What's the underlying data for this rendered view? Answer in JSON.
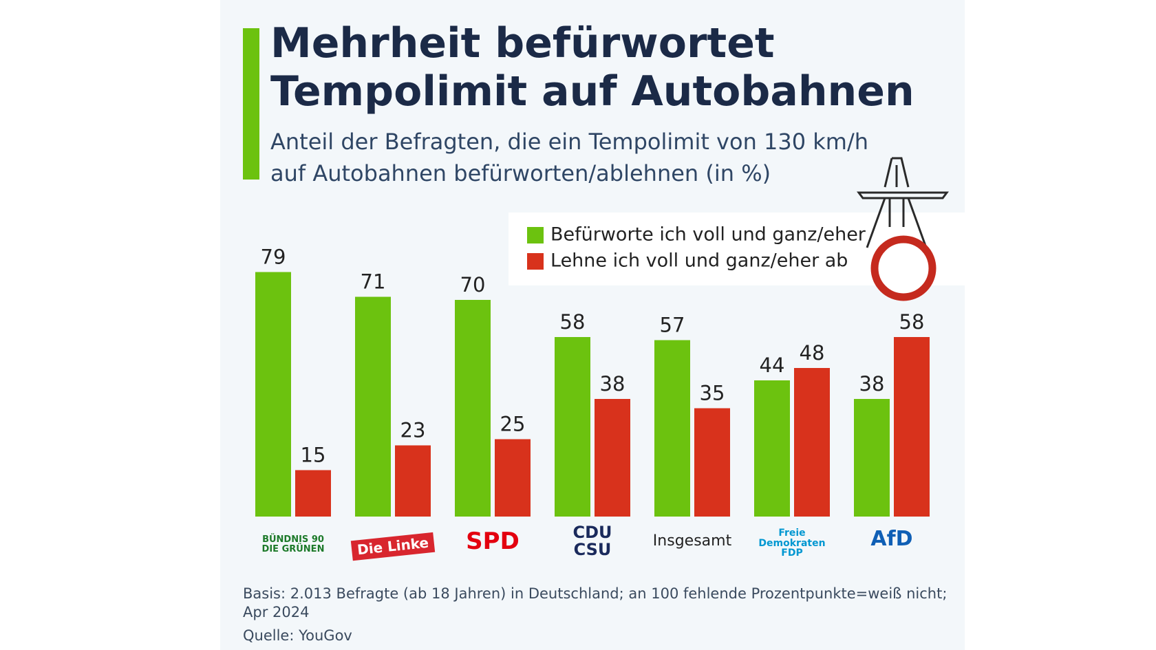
{
  "chart_data": {
    "type": "bar",
    "title": "Mehrheit befürwortet\nTempolimit auf Autobahnen",
    "subtitle": "Anteil der Befragten, die ein Tempolimit von 130 km/h\nauf Autobahnen befürworten/ablehnen (in %)",
    "categories": [
      "BÜNDNIS 90\nDIE GRÜNEN",
      "Die Linke",
      "SPD",
      "CDU\nCSU",
      "Insgesamt",
      "Freie\nDemokraten\nFDP",
      "AfD"
    ],
    "series": [
      {
        "name": "Befürworte ich voll und ganz/eher",
        "color": "#6cc20f",
        "values": [
          79,
          71,
          70,
          58,
          57,
          44,
          38
        ]
      },
      {
        "name": "Lehne ich voll und ganz/eher ab",
        "color": "#d8321c",
        "values": [
          15,
          23,
          25,
          38,
          35,
          48,
          58
        ]
      }
    ],
    "footnote": "Basis: 2.013 Befragte (ab 18 Jahren) in Deutschland; an 100 fehlende Prozentpunkte=weiß nicht;\nApr 2024",
    "source": "Quelle: YouGov"
  }
}
